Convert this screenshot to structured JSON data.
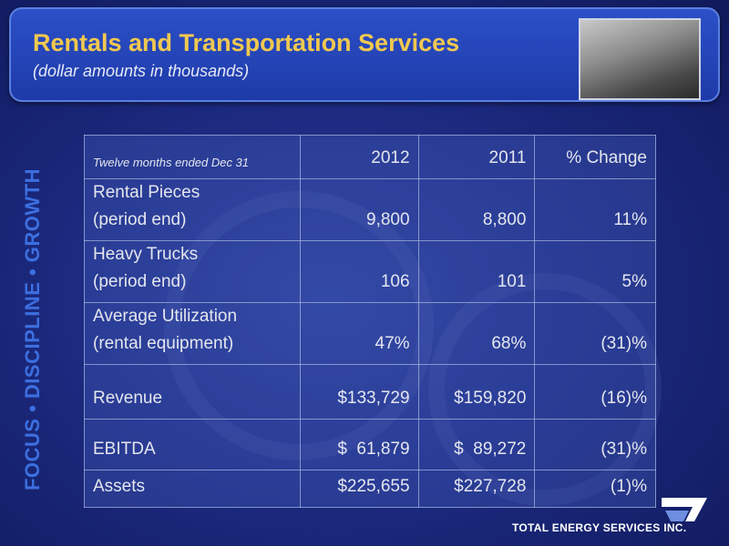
{
  "header": {
    "title": "Rentals and Transportation Services",
    "subtitle": "(dollar amounts in thousands)"
  },
  "side_text": "FOCUS • DISCIPLINE • GROWTH",
  "table": {
    "columns": [
      "Twelve months ended Dec 31",
      "2012",
      "2011",
      "% Change"
    ],
    "rows": [
      {
        "label": [
          "Rental Pieces",
          "(period end)"
        ],
        "cells": [
          "9,800",
          "8,800",
          "11%"
        ]
      },
      {
        "label": [
          "Heavy Trucks",
          "(period end)"
        ],
        "cells": [
          "106",
          "101",
          "5%"
        ]
      },
      {
        "label": [
          "Average Utilization",
          "(rental equipment)"
        ],
        "cells": [
          "47%",
          "68%",
          "(31)%"
        ]
      },
      {
        "label": [
          "Revenue"
        ],
        "cells": [
          "$133,729",
          "$159,820",
          "(16)%"
        ]
      },
      {
        "label": [
          "EBITDA"
        ],
        "cells": [
          "$  61,879",
          "$  89,272",
          "(31)%"
        ]
      },
      {
        "label": [
          "Assets"
        ],
        "cells": [
          "$225,655",
          "$227,728",
          "(1)%"
        ]
      }
    ]
  },
  "footer": {
    "company": "TOTAL ENERGY SERVICES INC."
  }
}
